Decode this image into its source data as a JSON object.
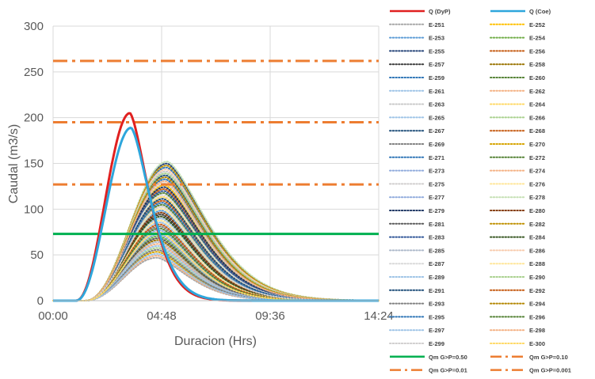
{
  "chart_data": {
    "type": "line",
    "title": "",
    "xlabel": "Duracion (Hrs)",
    "ylabel": "Caudal (m3/s)",
    "xlim": [
      0,
      14.4
    ],
    "ylim": [
      0,
      300
    ],
    "x_ticks": [
      {
        "value": 0,
        "label": "00:00"
      },
      {
        "value": 4.8,
        "label": "04:48"
      },
      {
        "value": 9.6,
        "label": "09:36"
      },
      {
        "value": 14.4,
        "label": "14:24"
      }
    ],
    "y_ticks": [
      0,
      50,
      100,
      150,
      200,
      250,
      300
    ],
    "grid": true,
    "legend_position": "right",
    "hydrographs": [
      {
        "name": "Q (DyP)",
        "peak": 205,
        "t_peak": 3.4,
        "start": 1.0,
        "decay": 1.25,
        "color": "#e02020",
        "width": 3.0
      },
      {
        "name": "Q (Coe)",
        "peak": 189,
        "t_peak": 3.45,
        "start": 1.0,
        "decay": 1.3,
        "color": "#2ea6dc",
        "width": 3.0
      }
    ],
    "ensemble": {
      "names": [
        "E-251",
        "E-252",
        "E-253",
        "E-254",
        "E-255",
        "E-256",
        "E-257",
        "E-258",
        "E-259",
        "E-260",
        "E-261",
        "E-262",
        "E-263",
        "E-264",
        "E-265",
        "E-266",
        "E-267",
        "E-268",
        "E-269",
        "E-270",
        "E-271",
        "E-272",
        "E-273",
        "E-274",
        "E-275",
        "E-276",
        "E-277",
        "E-278",
        "E-279",
        "E-280",
        "E-281",
        "E-282",
        "E-283",
        "E-284",
        "E-285",
        "E-286",
        "E-287",
        "E-288",
        "E-289",
        "E-290",
        "E-291",
        "E-292",
        "E-293",
        "E-294",
        "E-295",
        "E-296",
        "E-297",
        "E-298",
        "E-299",
        "E-300"
      ],
      "colors": [
        "#a6a6a6",
        "#ffc000",
        "#5b9bd5",
        "#70ad47",
        "#264478",
        "#c55a11",
        "#3a3a3a",
        "#997300",
        "#2e75b6",
        "#548235",
        "#9dc3e6",
        "#f4b183",
        "#c9c9c9",
        "#ffd966",
        "#9dc3e6",
        "#a9d18e",
        "#1f4e79",
        "#c55a11",
        "#7f7f7f",
        "#d6a400",
        "#2e75b6",
        "#548235",
        "#8faadc",
        "#f4b183",
        "#d0cece",
        "#ffe699",
        "#8faadc",
        "#c5e0b4",
        "#203864",
        "#843c0c",
        "#595959",
        "#bf9000",
        "#2f5597",
        "#385723",
        "#adb9ca",
        "#f8cbad",
        "#d9d9d9",
        "#ffe699",
        "#9dc3e6",
        "#a9d18e",
        "#1f4e79",
        "#c55a11",
        "#7f7f7f",
        "#b38600",
        "#2e75b6",
        "#548235",
        "#9dc3e6",
        "#f4b183",
        "#d0cece",
        "#ffd966"
      ],
      "peak_range": [
        47,
        152
      ],
      "t_peak_range": [
        4.6,
        5.05
      ],
      "start": 1.4,
      "decay_range": [
        2.0,
        2.6
      ]
    },
    "thresholds": [
      {
        "name": "Qm G>P=0.50",
        "value": 73,
        "color": "#00b050",
        "style": "solid"
      },
      {
        "name": "Qm G>P=0.10",
        "value": 127,
        "color": "#ed7d31",
        "style": "dashdot"
      },
      {
        "name": "Qm G>P=0.01",
        "value": 195,
        "color": "#ed7d31",
        "style": "dashdot"
      },
      {
        "name": "Qm G>P=0.001",
        "value": 262,
        "color": "#ed7d31",
        "style": "dashdot"
      }
    ]
  }
}
